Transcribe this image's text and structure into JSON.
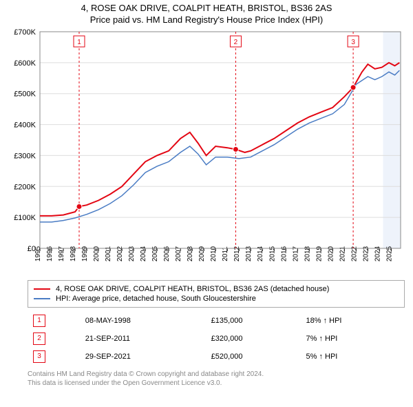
{
  "title_line1": "4, ROSE OAK DRIVE, COALPIT HEATH, BRISTOL, BS36 2AS",
  "title_line2": "Price paid vs. HM Land Registry's House Price Index (HPI)",
  "chart": {
    "type": "line",
    "background_color": "#ffffff",
    "plot_border_color": "#888888",
    "grid_color": "#dddddd",
    "xlim": [
      1995,
      2025.8
    ],
    "ylim": [
      0,
      700000
    ],
    "ytick_step": 100000,
    "ytick_labels": [
      "£0",
      "£100K",
      "£200K",
      "£300K",
      "£400K",
      "£500K",
      "£600K",
      "£700K"
    ],
    "xtick_years": [
      1995,
      1996,
      1997,
      1998,
      1999,
      2000,
      2001,
      2002,
      2003,
      2004,
      2005,
      2006,
      2007,
      2008,
      2009,
      2010,
      2011,
      2012,
      2013,
      2014,
      2015,
      2016,
      2017,
      2018,
      2019,
      2020,
      2021,
      2022,
      2023,
      2024,
      2025
    ],
    "recent_band": {
      "start": 2024.3,
      "end": 2025.8,
      "color": "#eef3fb"
    },
    "series": [
      {
        "name": "property_price",
        "label": "4, ROSE OAK DRIVE, COALPIT HEATH, BRISTOL, BS36 2AS (detached house)",
        "color": "#e30613",
        "line_width": 2,
        "points": [
          [
            1995.0,
            105000
          ],
          [
            1996.0,
            105000
          ],
          [
            1997.0,
            108000
          ],
          [
            1998.0,
            118000
          ],
          [
            1998.35,
            135000
          ],
          [
            1999.0,
            140000
          ],
          [
            2000.0,
            155000
          ],
          [
            2001.0,
            175000
          ],
          [
            2002.0,
            200000
          ],
          [
            2003.0,
            240000
          ],
          [
            2004.0,
            280000
          ],
          [
            2005.0,
            300000
          ],
          [
            2006.0,
            315000
          ],
          [
            2007.0,
            355000
          ],
          [
            2007.8,
            375000
          ],
          [
            2008.5,
            340000
          ],
          [
            2009.2,
            300000
          ],
          [
            2010.0,
            330000
          ],
          [
            2011.0,
            325000
          ],
          [
            2011.72,
            320000
          ],
          [
            2012.5,
            310000
          ],
          [
            2013.0,
            315000
          ],
          [
            2014.0,
            335000
          ],
          [
            2015.0,
            355000
          ],
          [
            2016.0,
            380000
          ],
          [
            2017.0,
            405000
          ],
          [
            2018.0,
            425000
          ],
          [
            2019.0,
            440000
          ],
          [
            2020.0,
            455000
          ],
          [
            2021.0,
            490000
          ],
          [
            2021.75,
            520000
          ],
          [
            2022.5,
            570000
          ],
          [
            2023.0,
            595000
          ],
          [
            2023.6,
            580000
          ],
          [
            2024.2,
            585000
          ],
          [
            2024.8,
            600000
          ],
          [
            2025.3,
            590000
          ],
          [
            2025.7,
            600000
          ]
        ]
      },
      {
        "name": "hpi",
        "label": "HPI: Average price, detached house, South Gloucestershire",
        "color": "#4a7cc4",
        "line_width": 1.5,
        "points": [
          [
            1995.0,
            85000
          ],
          [
            1996.0,
            85000
          ],
          [
            1997.0,
            90000
          ],
          [
            1998.0,
            98000
          ],
          [
            1999.0,
            110000
          ],
          [
            2000.0,
            125000
          ],
          [
            2001.0,
            145000
          ],
          [
            2002.0,
            170000
          ],
          [
            2003.0,
            205000
          ],
          [
            2004.0,
            245000
          ],
          [
            2005.0,
            265000
          ],
          [
            2006.0,
            280000
          ],
          [
            2007.0,
            310000
          ],
          [
            2007.8,
            330000
          ],
          [
            2008.5,
            305000
          ],
          [
            2009.2,
            270000
          ],
          [
            2010.0,
            295000
          ],
          [
            2011.0,
            295000
          ],
          [
            2012.0,
            290000
          ],
          [
            2013.0,
            295000
          ],
          [
            2014.0,
            315000
          ],
          [
            2015.0,
            335000
          ],
          [
            2016.0,
            360000
          ],
          [
            2017.0,
            385000
          ],
          [
            2018.0,
            405000
          ],
          [
            2019.0,
            420000
          ],
          [
            2020.0,
            435000
          ],
          [
            2021.0,
            465000
          ],
          [
            2022.0,
            530000
          ],
          [
            2023.0,
            555000
          ],
          [
            2023.6,
            545000
          ],
          [
            2024.2,
            555000
          ],
          [
            2024.8,
            570000
          ],
          [
            2025.3,
            560000
          ],
          [
            2025.7,
            575000
          ]
        ]
      }
    ],
    "event_markers": [
      {
        "id": "1",
        "x": 1998.35,
        "y": 135000,
        "color": "#e30613"
      },
      {
        "id": "2",
        "x": 2011.72,
        "y": 320000,
        "color": "#e30613"
      },
      {
        "id": "3",
        "x": 2021.75,
        "y": 520000,
        "color": "#e30613"
      }
    ],
    "event_vline_color": "#e30613",
    "event_vline_dash": "3,3",
    "event_label_box_border": "#e30613",
    "event_label_box_bg": "#ffffff"
  },
  "legend": [
    {
      "color": "#e30613",
      "label": "4, ROSE OAK DRIVE, COALPIT HEATH, BRISTOL, BS36 2AS (detached house)"
    },
    {
      "color": "#4a7cc4",
      "label": "HPI: Average price, detached house, South Gloucestershire"
    }
  ],
  "events_table": [
    {
      "id": "1",
      "box_color": "#e30613",
      "date": "08-MAY-1998",
      "price": "£135,000",
      "delta": "18% ↑ HPI"
    },
    {
      "id": "2",
      "box_color": "#e30613",
      "date": "21-SEP-2011",
      "price": "£320,000",
      "delta": "7% ↑ HPI"
    },
    {
      "id": "3",
      "box_color": "#e30613",
      "date": "29-SEP-2021",
      "price": "£520,000",
      "delta": "5% ↑ HPI"
    }
  ],
  "attribution_line1": "Contains HM Land Registry data © Crown copyright and database right 2024.",
  "attribution_line2": "This data is licensed under the Open Government Licence v3.0."
}
